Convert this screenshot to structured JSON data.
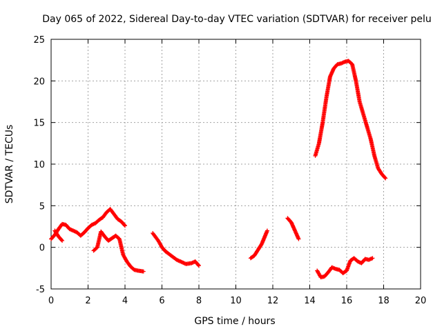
{
  "chart_data": {
    "type": "scatter",
    "title": "Day 065 of 2022, Sidereal Day-to-day VTEC variation (SDTVAR) for receiver pelu",
    "xlabel": "GPS time / hours",
    "ylabel": "SDTVAR / TECUs",
    "xlim": [
      0,
      20
    ],
    "ylim": [
      -5,
      25
    ],
    "xticks": [
      0,
      2,
      4,
      6,
      8,
      10,
      12,
      14,
      16,
      18,
      20
    ],
    "yticks": [
      -5,
      0,
      5,
      10,
      15,
      20,
      25
    ],
    "xtick_labels": [
      "0",
      "2",
      "4",
      "6",
      "8",
      "10",
      "12",
      "14",
      "16",
      "18",
      "20"
    ],
    "ytick_labels": [
      "-5",
      "0",
      "5",
      "10",
      "15",
      "20",
      "25"
    ],
    "grid": true,
    "marker": "+",
    "color": "#ff0000",
    "series": [
      {
        "name": "seg-a",
        "x": [
          0.0,
          0.2,
          0.4,
          0.6,
          0.8,
          1.0,
          1.2,
          1.4,
          1.6,
          1.8,
          2.0,
          2.2,
          2.4,
          2.6,
          2.8,
          3.0,
          3.2,
          3.4,
          3.6,
          3.8,
          4.0
        ],
        "y": [
          1.0,
          1.5,
          2.2,
          2.8,
          2.7,
          2.2,
          2.0,
          1.8,
          1.4,
          1.8,
          2.3,
          2.7,
          2.9,
          3.3,
          3.6,
          4.2,
          4.6,
          4.0,
          3.4,
          3.1,
          2.6
        ]
      },
      {
        "name": "seg-b",
        "x": [
          0.2,
          0.4,
          0.6
        ],
        "y": [
          2.0,
          1.3,
          0.8
        ]
      },
      {
        "name": "seg-c",
        "x": [
          2.3,
          2.5,
          2.7,
          2.9,
          3.1,
          3.3,
          3.5,
          3.7,
          3.9,
          4.1,
          4.3,
          4.5,
          4.7,
          5.0
        ],
        "y": [
          -0.4,
          0.0,
          1.9,
          1.3,
          0.8,
          1.1,
          1.4,
          1.0,
          -0.9,
          -1.7,
          -2.3,
          -2.7,
          -2.8,
          -2.9
        ]
      },
      {
        "name": "seg-d",
        "x": [
          5.5,
          5.8,
          6.0,
          6.2,
          6.5,
          6.8,
          7.0,
          7.3,
          7.6,
          7.8,
          8.0
        ],
        "y": [
          1.7,
          0.8,
          0.0,
          -0.5,
          -1.0,
          -1.5,
          -1.7,
          -2.0,
          -1.9,
          -1.7,
          -2.2
        ]
      },
      {
        "name": "seg-e",
        "x": [
          10.8,
          11.0,
          11.2,
          11.4,
          11.7
        ],
        "y": [
          -1.3,
          -1.0,
          -0.3,
          0.4,
          2.0
        ]
      },
      {
        "name": "seg-f",
        "x": [
          12.8,
          13.0,
          13.2,
          13.4
        ],
        "y": [
          3.5,
          3.0,
          2.0,
          1.0
        ]
      },
      {
        "name": "seg-g",
        "x": [
          14.3,
          14.5,
          14.7,
          14.9,
          15.1,
          15.3,
          15.5,
          15.7,
          15.9,
          16.1,
          16.3,
          16.5,
          16.7,
          16.9,
          17.1,
          17.3,
          17.5,
          17.7,
          17.9,
          18.1
        ],
        "y": [
          11.0,
          12.5,
          15.0,
          18.0,
          20.5,
          21.5,
          22.0,
          22.1,
          22.3,
          22.4,
          22.0,
          20.0,
          17.5,
          16.0,
          14.5,
          13.0,
          11.0,
          9.5,
          8.8,
          8.3
        ]
      },
      {
        "name": "seg-h",
        "x": [
          14.4,
          14.6,
          14.8,
          15.0,
          15.2,
          15.4,
          15.6,
          15.8,
          16.0,
          16.2,
          16.4,
          16.6,
          16.8,
          17.0,
          17.2,
          17.4
        ],
        "y": [
          -2.8,
          -3.6,
          -3.5,
          -3.0,
          -2.4,
          -2.6,
          -2.7,
          -3.1,
          -2.8,
          -1.6,
          -1.3,
          -1.7,
          -1.9,
          -1.4,
          -1.5,
          -1.3
        ]
      }
    ]
  }
}
